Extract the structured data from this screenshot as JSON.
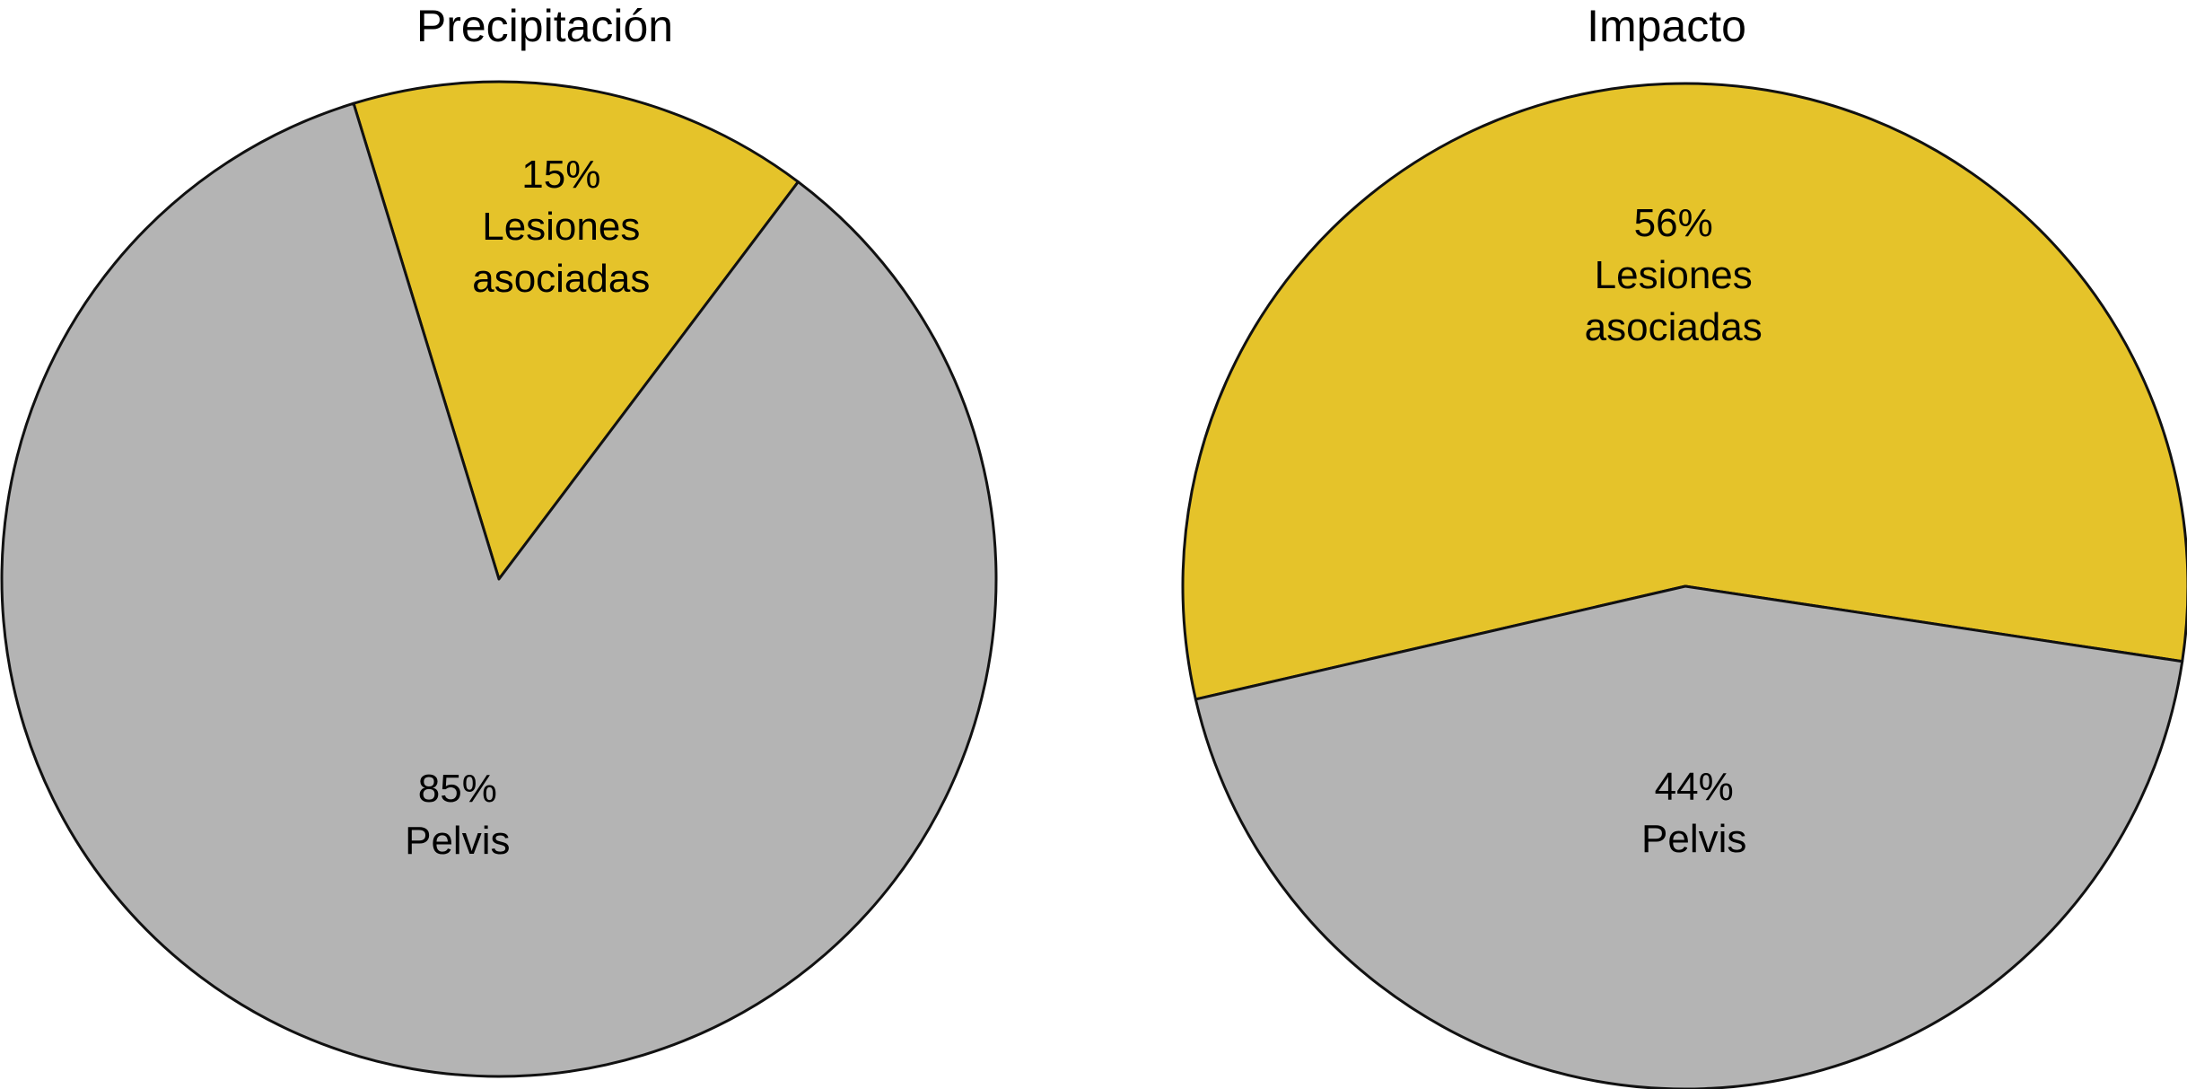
{
  "chart_data": [
    {
      "type": "pie",
      "title": "Precipitación",
      "slices": [
        {
          "label": "Lesiones asociadas",
          "value": 15,
          "value_label": "15%",
          "color": "#E5C32A"
        },
        {
          "label": "Pelvis",
          "value": 85,
          "value_label": "85%",
          "color": "#B4B4B4"
        }
      ],
      "start_angle_deg": -17,
      "direction": "clockwise",
      "legend": "none"
    },
    {
      "type": "pie",
      "title": "Impacto",
      "slices": [
        {
          "label": "Lesiones asociadas",
          "value": 56,
          "value_label": "56%",
          "color": "#E5C32A"
        },
        {
          "label": "Pelvis",
          "value": 44,
          "value_label": "44%",
          "color": "#B4B4B4"
        }
      ],
      "start_angle_deg": -103,
      "direction": "clockwise",
      "legend": "none"
    }
  ]
}
